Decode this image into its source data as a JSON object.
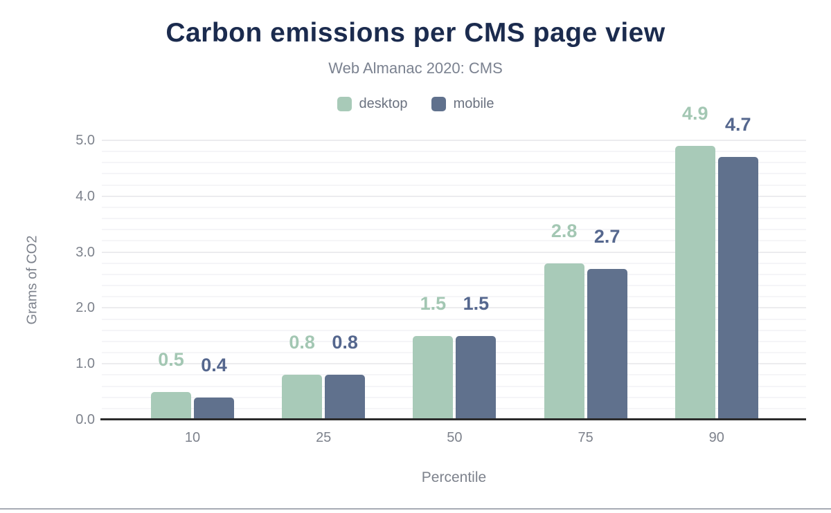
{
  "chart_data": {
    "type": "bar",
    "title": "Carbon emissions per CMS page view",
    "subtitle": "Web Almanac 2020: CMS",
    "xlabel": "Percentile",
    "ylabel": "Grams of CO2",
    "categories": [
      "10",
      "25",
      "50",
      "75",
      "90"
    ],
    "series": [
      {
        "name": "desktop",
        "color": "#a8cab8",
        "label_color": "#a3c7b3",
        "values": [
          0.5,
          0.8,
          1.5,
          2.8,
          4.9
        ]
      },
      {
        "name": "mobile",
        "color": "#60718d",
        "label_color": "#55678e",
        "values": [
          0.4,
          0.8,
          1.5,
          2.7,
          4.7
        ]
      }
    ],
    "ylim": [
      0,
      5
    ],
    "ytick_step": 1.0,
    "minor_tick_step": 0.2,
    "ytick_labels": [
      "0.0",
      "1.0",
      "2.0",
      "3.0",
      "4.0",
      "5.0"
    ],
    "grid": true,
    "legend_position": "top",
    "value_labels_shown": true
  },
  "colors": {
    "title": "#1b2b4e",
    "subtitle": "#7b8290",
    "axis_text": "#7d828c",
    "axis_line": "#2b2b2b",
    "grid_major": "#ececee",
    "grid_minor": "#f5f5f7",
    "bottom_rule": "#a6abb4",
    "background": "#ffffff"
  }
}
